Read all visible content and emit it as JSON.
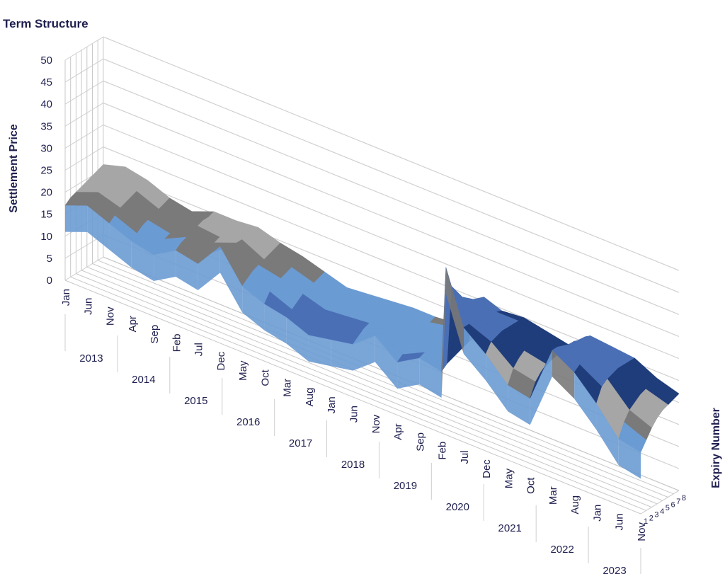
{
  "chart_data": {
    "type": "surface",
    "title": "Term Structure",
    "ylabel": "Settlement Price",
    "zlabel": "Expiry Number",
    "ylim": [
      0,
      50
    ],
    "y_ticks": [
      "0",
      "5",
      "10",
      "15",
      "20",
      "25",
      "30",
      "35",
      "40",
      "45",
      "50"
    ],
    "expiry_ticks": [
      "1",
      "2",
      "3",
      "4",
      "5",
      "6",
      "7",
      "8"
    ],
    "month_ticks": [
      "Jan",
      "Jun",
      "Nov",
      "Apr",
      "Sep",
      "Feb",
      "Jul",
      "Dec",
      "May",
      "Oct",
      "Mar",
      "Aug",
      "Jan",
      "Jun",
      "Nov",
      "Apr",
      "Sep",
      "Feb",
      "Jul",
      "Dec",
      "May",
      "Oct",
      "Mar",
      "Aug",
      "Jan",
      "Jun",
      "Nov"
    ],
    "year_ticks": [
      "2013",
      "2014",
      "2015",
      "2016",
      "2017",
      "2018",
      "2019",
      "2020",
      "2021",
      "2022",
      "2023"
    ],
    "band_colors": [
      "#7a7a7a",
      "#a6a6a6",
      "#1f3d7a",
      "#4a6fb5",
      "#6b9bd3",
      "#8fbce6"
    ],
    "settlement_series": [
      {
        "date": "2013-01",
        "values": [
          17,
          18,
          18.5,
          19,
          19.5,
          20,
          20.5,
          21
        ]
      },
      {
        "date": "2013-06",
        "values": [
          19,
          20,
          20.5,
          21,
          21.5,
          22,
          22,
          22.5
        ]
      },
      {
        "date": "2013-11",
        "values": [
          17,
          18,
          19,
          19.5,
          20,
          20.5,
          21,
          21.5
        ]
      },
      {
        "date": "2014-04",
        "values": [
          15,
          16,
          17,
          17.5,
          18,
          18.5,
          19,
          19.5
        ]
      },
      {
        "date": "2014-09",
        "values": [
          14,
          15,
          16,
          16.5,
          17,
          17.5,
          18,
          18.5
        ]
      },
      {
        "date": "2015-02",
        "values": [
          17,
          18,
          18.5,
          19,
          19.5,
          20,
          20,
          20.5
        ]
      },
      {
        "date": "2015-07",
        "values": [
          16,
          17,
          18,
          18.5,
          19,
          19.5,
          20,
          20.5
        ]
      },
      {
        "date": "2015-12",
        "values": [
          22,
          21,
          20.5,
          20.5,
          20.5,
          21,
          21,
          21
        ]
      },
      {
        "date": "2016-05",
        "values": [
          15,
          16,
          17,
          17.5,
          18,
          18.5,
          19,
          19.5
        ]
      },
      {
        "date": "2016-10",
        "values": [
          13,
          15,
          16,
          16.5,
          17,
          17.5,
          18,
          18.5
        ]
      },
      {
        "date": "2017-03",
        "values": [
          12,
          13,
          14,
          15,
          15.5,
          16,
          16.5,
          17
        ]
      },
      {
        "date": "2017-08",
        "values": [
          10,
          11.5,
          12.5,
          13.5,
          14,
          14.5,
          15,
          15.5
        ]
      },
      {
        "date": "2018-01",
        "values": [
          11,
          12,
          13,
          14,
          14.5,
          15,
          15.5,
          16
        ]
      },
      {
        "date": "2018-06",
        "values": [
          12,
          13,
          14,
          14.5,
          15,
          15.5,
          16,
          16.5
        ]
      },
      {
        "date": "2018-11",
        "values": [
          16,
          16,
          16,
          16,
          16.5,
          16.5,
          17,
          17
        ]
      },
      {
        "date": "2019-04",
        "values": [
          12,
          13,
          14,
          15,
          15.5,
          16,
          16.5,
          17
        ]
      },
      {
        "date": "2019-09",
        "values": [
          15,
          15.5,
          16,
          16.5,
          17,
          17,
          17.5,
          17.5
        ]
      },
      {
        "date": "2020-02",
        "values": [
          14,
          15,
          15.5,
          16,
          16.5,
          17,
          17,
          17.5
        ]
      },
      {
        "date": "2020-03",
        "values": [
          38,
          33,
          31,
          29,
          28,
          27,
          26.5,
          26
        ]
      },
      {
        "date": "2020-07",
        "values": [
          26,
          26,
          25.5,
          25.5,
          25,
          25,
          25,
          24.5
        ]
      },
      {
        "date": "2020-12",
        "values": [
          22,
          24,
          24.5,
          25,
          25,
          25,
          25,
          25
        ]
      },
      {
        "date": "2021-05",
        "values": [
          17,
          20,
          21.5,
          22.5,
          23,
          23.5,
          24,
          24
        ]
      },
      {
        "date": "2021-10",
        "values": [
          16,
          19,
          20.5,
          21.5,
          22,
          22.5,
          23,
          23
        ]
      },
      {
        "date": "2022-03",
        "values": [
          29,
          29,
          28.5,
          28,
          28,
          27.5,
          27.5,
          27
        ]
      },
      {
        "date": "2022-08",
        "values": [
          26,
          27,
          27,
          27,
          27,
          26.5,
          26.5,
          26.5
        ]
      },
      {
        "date": "2023-01",
        "values": [
          21,
          24,
          25,
          25.5,
          26,
          26,
          26,
          26
        ]
      },
      {
        "date": "2023-06",
        "values": [
          15,
          18,
          20,
          21,
          22,
          22.5,
          23,
          23.5
        ]
      },
      {
        "date": "2023-11",
        "values": [
          14,
          16,
          18,
          19.5,
          20.5,
          21,
          21.5,
          22
        ]
      }
    ]
  }
}
